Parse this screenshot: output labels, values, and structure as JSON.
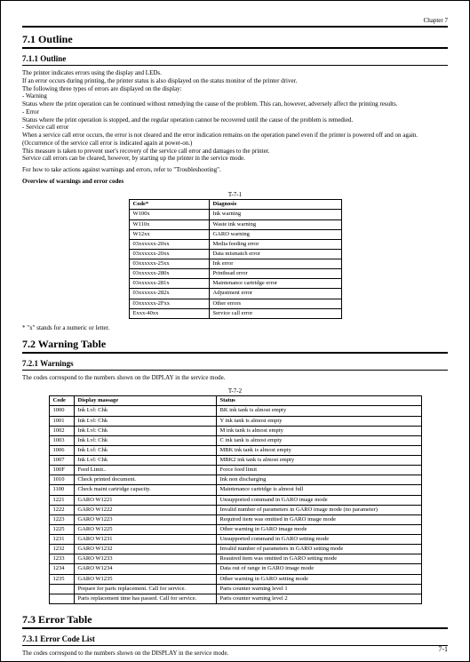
{
  "header": {
    "chapter": "Chapter 7"
  },
  "sections": {
    "s1": {
      "title": "7.1 Outline",
      "sub": "7.1.1 Outline"
    },
    "s2": {
      "title": "7.2 Warning Table",
      "sub": "7.2.1 Warnings"
    },
    "s3": {
      "title": "7.3 Error Table",
      "sub": "7.3.1 Error Code List"
    }
  },
  "outline": {
    "p1": "The printer indicates errors using the display and LEDs.",
    "p2": "If an error occurs during printing, the printer status is also displayed on the status monitor of the printer driver.",
    "p3": "The following three types of errors are displayed on the display:",
    "b1": "- Warning",
    "b1d": "Status where the print operation can be continued without remedying the cause of the problem. This can, however, adversely affect the printing results.",
    "b2": "- Error",
    "b2d": "Status where the print operation is stopped, and the regular operation cannot be recovered until the cause of the problem is remedied.",
    "b3": "- Service call error",
    "b3d1": "When a service call error occurs, the error is not cleared and the error indication remains on the operation panel even if the printer is powered off and on again. (Occurrence of the service call error is indicated again at power-on.)",
    "b3d2": "This measure is taken to prevent user's recovery of the service call error and damages to the printer.",
    "b3d3": "Service call errors can be cleared, however, by starting up the printer in the service mode.",
    "p4": "For how to take actions against warnings and errors, refer to \"Troubleshooting\".",
    "p5": "Overview of warnings and error codes"
  },
  "table1": {
    "caption": "T-7-1",
    "headers": [
      "Code*",
      "Diagnosis"
    ],
    "rows": [
      [
        "W100x",
        "Ink warning"
      ],
      [
        "W110x",
        "Waste ink warning"
      ],
      [
        "W12xx",
        "GARO warning"
      ],
      [
        "03xxxxxx-20xx",
        "Media feeding error"
      ],
      [
        "03xxxxxx-20xx",
        "Data mismatch error"
      ],
      [
        "03xxxxxx-25xx",
        "Ink error"
      ],
      [
        "03xxxxxx-280x",
        "Printhead error"
      ],
      [
        "03xxxxxx-281x",
        "Maintenance cartridge error"
      ],
      [
        "03xxxxxx-282x",
        "Adjustment error"
      ],
      [
        "03xxxxxx-2Fxx",
        "Other errors"
      ],
      [
        "Exxx-40xx",
        "Service call error"
      ]
    ]
  },
  "note1": "* \"x\" stands for a numeric or letter.",
  "warnings": {
    "intro": "The codes correspond to the numbers shown on the DIPLAY in the service mode."
  },
  "table2": {
    "caption": "T-7-2",
    "headers": [
      "Code",
      "Display massage",
      "Status"
    ],
    "rows": [
      [
        "1000",
        "Ink Lvl: Chk",
        "BK ink tank is almost empty"
      ],
      [
        "1001",
        "Ink Lvl: Chk",
        "Y ink tank is almost empty"
      ],
      [
        "1002",
        "Ink Lvl: Chk",
        "M ink tank is almost empty"
      ],
      [
        "1003",
        "Ink Lvl: Chk",
        "C ink tank is almost empty"
      ],
      [
        "1006",
        "Ink Lvl: Chk",
        "MBK ink tank is almost empty"
      ],
      [
        "1007",
        "Ink Lvl: Chk",
        "MBK2 ink tank is almost empty"
      ],
      [
        "100F",
        "Feed Limit..",
        "Force feed limit"
      ],
      [
        "1010",
        "Check printed document.",
        "Ink non discharging"
      ],
      [
        "1100",
        "Check maint cartridge capacity.",
        "Maintenance cartridge is almost full"
      ],
      [
        "1221",
        "GARO W1221",
        "Unsupported command in GARO image mode"
      ],
      [
        "1222",
        "GARO W1222",
        "Invalid number of parameters in GARO image mode (no parameter)"
      ],
      [
        "1223",
        "GARO W1223",
        "Required item was omitted in GARO image mode"
      ],
      [
        "1225",
        "GARO W1225",
        "Other warning in GARO image mode"
      ],
      [
        "1231",
        "GARO W1231",
        "Unsupported command in GARO setting mode"
      ],
      [
        "1232",
        "GARO W1232",
        "Invalid number of parameters in GARO setting mode"
      ],
      [
        "1233",
        "GARO W1233",
        "Reauired item was omitted in GARO setting mode"
      ],
      [
        "1234",
        "GARO W1234",
        "Data out of range in GARO image mode"
      ],
      [
        "1235",
        "GARO W1235",
        "Other warning in GARO setting mode"
      ],
      [
        "",
        "Prepare for parts replacement. Call for service.",
        "Parts counter warning level 1"
      ],
      [
        "",
        "Parts replacement time has passed. Call for service.",
        "Parts counter warning level 2"
      ]
    ]
  },
  "errorlist": {
    "intro": "The codes correspond to the numbers shown on the DISPLAY in the service mode."
  },
  "pagenum": "7-1"
}
